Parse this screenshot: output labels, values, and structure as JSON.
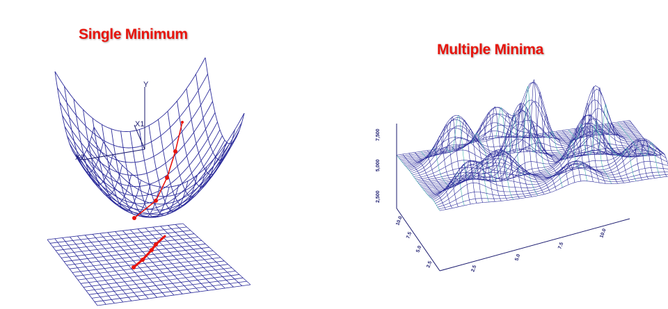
{
  "left_panel": {
    "title": "Single Minimum",
    "axis_labels": {
      "y": "Y",
      "x1": "X1",
      "x2": "X2"
    }
  },
  "right_panel": {
    "title": "Multiple Minima",
    "z_ticks": [
      "2,500",
      "5,000",
      "7,500"
    ],
    "x_ticks": [
      "2.5",
      "5.0",
      "7.5",
      "10.0"
    ],
    "y_ticks": [
      "2.5",
      "5.0",
      "7.5",
      "10.0"
    ]
  },
  "colors": {
    "title": "#e8140c",
    "mesh": "#2b2b9a",
    "mesh_back": "#3fb3ad",
    "path": "#e8140c",
    "axes": "#1a1a6e"
  }
}
